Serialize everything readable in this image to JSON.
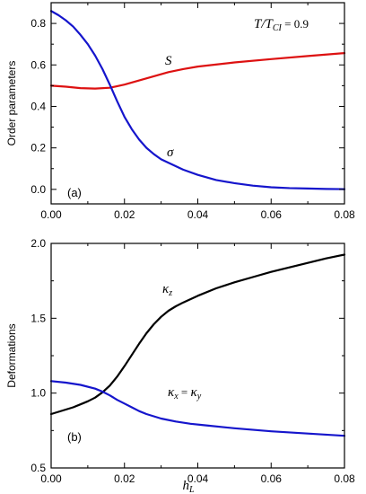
{
  "chart_data": [
    {
      "panel": "(a)",
      "type": "line",
      "xlabel": "",
      "ylabel": "Order parameters",
      "xlim": [
        0,
        0.08
      ],
      "ylim": [
        -0.07,
        0.9
      ],
      "x_ticks": [
        "0.00",
        "0.02",
        "0.04",
        "0.06",
        "0.08"
      ],
      "y_ticks": [
        "0.0",
        "0.2",
        "0.4",
        "0.6",
        "0.8"
      ],
      "annotation": {
        "lhs": "T/T",
        "lhs_sub": "CI",
        "rhs": " = 0.9"
      },
      "series": [
        {
          "name": "S",
          "color": "#dd1111",
          "x": [
            0,
            0.004,
            0.008,
            0.012,
            0.016,
            0.02,
            0.024,
            0.028,
            0.032,
            0.036,
            0.04,
            0.05,
            0.06,
            0.07,
            0.08
          ],
          "y": [
            0.5,
            0.495,
            0.488,
            0.486,
            0.49,
            0.505,
            0.525,
            0.545,
            0.565,
            0.58,
            0.592,
            0.612,
            0.628,
            0.643,
            0.657
          ]
        },
        {
          "name": "σ",
          "color": "#1515cc",
          "x": [
            0,
            0.002,
            0.004,
            0.006,
            0.008,
            0.01,
            0.012,
            0.014,
            0.016,
            0.018,
            0.02,
            0.022,
            0.024,
            0.026,
            0.028,
            0.03,
            0.033,
            0.036,
            0.04,
            0.045,
            0.05,
            0.055,
            0.06,
            0.065,
            0.07,
            0.075,
            0.08
          ],
          "y": [
            0.86,
            0.84,
            0.815,
            0.785,
            0.745,
            0.7,
            0.645,
            0.58,
            0.505,
            0.425,
            0.35,
            0.29,
            0.24,
            0.2,
            0.17,
            0.145,
            0.12,
            0.095,
            0.07,
            0.045,
            0.03,
            0.018,
            0.01,
            0.006,
            0.004,
            0.002,
            0.001
          ]
        }
      ]
    },
    {
      "panel": "(b)",
      "type": "line",
      "xlabel": "h",
      "xlabel_sub": "L",
      "ylabel": "Deformations",
      "xlim": [
        0,
        0.08
      ],
      "ylim": [
        0.5,
        2.0
      ],
      "x_ticks": [
        "0.00",
        "0.02",
        "0.04",
        "0.06",
        "0.08"
      ],
      "y_ticks": [
        "0.5",
        "1.0",
        "1.5",
        "2.0"
      ],
      "series": [
        {
          "name": "κz",
          "label": {
            "main": "κ",
            "sub": "z"
          },
          "color": "#000000",
          "x": [
            0,
            0.002,
            0.004,
            0.006,
            0.008,
            0.01,
            0.012,
            0.014,
            0.016,
            0.018,
            0.02,
            0.022,
            0.024,
            0.026,
            0.028,
            0.03,
            0.032,
            0.034,
            0.036,
            0.04,
            0.045,
            0.05,
            0.055,
            0.06,
            0.065,
            0.07,
            0.075,
            0.08
          ],
          "y": [
            0.86,
            0.875,
            0.89,
            0.905,
            0.925,
            0.945,
            0.97,
            1.005,
            1.05,
            1.11,
            1.18,
            1.255,
            1.33,
            1.4,
            1.46,
            1.51,
            1.55,
            1.58,
            1.605,
            1.65,
            1.7,
            1.74,
            1.775,
            1.81,
            1.84,
            1.87,
            1.9,
            1.925
          ]
        },
        {
          "name": "κx = κy",
          "label": {
            "left_main": "κ",
            "left_sub": "x",
            "eq": " = ",
            "right_main": "κ",
            "right_sub": "y"
          },
          "color": "#1515cc",
          "x": [
            0,
            0.004,
            0.008,
            0.012,
            0.014,
            0.016,
            0.018,
            0.02,
            0.022,
            0.024,
            0.026,
            0.028,
            0.03,
            0.034,
            0.038,
            0.042,
            0.05,
            0.06,
            0.07,
            0.08
          ],
          "y": [
            1.08,
            1.07,
            1.055,
            1.03,
            1.01,
            0.985,
            0.955,
            0.93,
            0.905,
            0.88,
            0.86,
            0.845,
            0.83,
            0.81,
            0.795,
            0.785,
            0.765,
            0.745,
            0.73,
            0.715
          ]
        }
      ]
    }
  ]
}
